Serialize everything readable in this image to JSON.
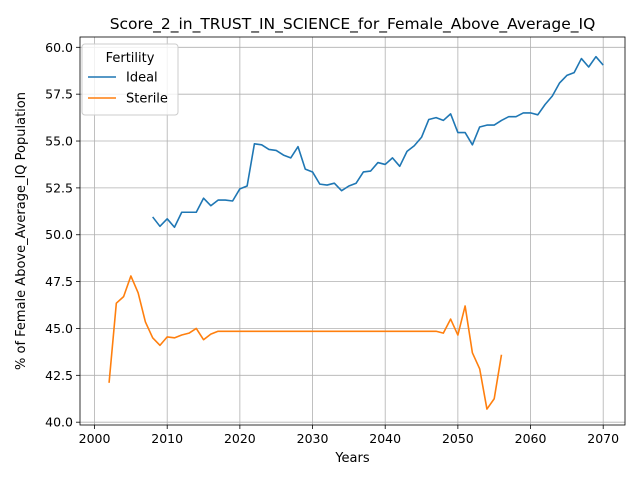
{
  "chart_data": {
    "type": "line",
    "title": "Score_2_in_TRUST_IN_SCIENCE_for_Female_Above_Average_IQ",
    "xlabel": "Years",
    "ylabel": "% of Female Above_Average_IQ Population",
    "xlim": [
      1998,
      2073
    ],
    "ylim": [
      39.85,
      60.55
    ],
    "xticks": [
      2000,
      2010,
      2020,
      2030,
      2040,
      2050,
      2060,
      2070
    ],
    "yticks": [
      40.0,
      42.5,
      45.0,
      47.5,
      50.0,
      52.5,
      55.0,
      57.5,
      60.0
    ],
    "grid": true,
    "legend": {
      "title": "Fertility",
      "placement": "top-left"
    },
    "series": [
      {
        "name": "Ideal",
        "color": "#1f77b4",
        "x": [
          2008,
          2009,
          2010,
          2011,
          2012,
          2013,
          2014,
          2015,
          2016,
          2017,
          2018,
          2019,
          2020,
          2021,
          2022,
          2023,
          2024,
          2025,
          2026,
          2027,
          2028,
          2029,
          2030,
          2031,
          2032,
          2033,
          2034,
          2035,
          2036,
          2037,
          2038,
          2039,
          2040,
          2041,
          2042,
          2043,
          2044,
          2045,
          2046,
          2047,
          2048,
          2049,
          2050,
          2051,
          2052,
          2053,
          2054,
          2055,
          2056,
          2057,
          2058,
          2059,
          2060,
          2061,
          2062,
          2063,
          2064,
          2065,
          2066,
          2067,
          2068,
          2069,
          2070
        ],
        "y": [
          50.95,
          50.45,
          50.85,
          50.4,
          51.2,
          51.2,
          51.2,
          51.95,
          51.55,
          51.85,
          51.85,
          51.8,
          52.45,
          52.6,
          54.85,
          54.8,
          54.55,
          54.5,
          54.25,
          54.1,
          54.7,
          53.5,
          53.35,
          52.7,
          52.65,
          52.75,
          52.35,
          52.6,
          52.75,
          53.35,
          53.4,
          53.85,
          53.75,
          54.1,
          53.65,
          54.45,
          54.75,
          55.2,
          56.15,
          56.25,
          56.1,
          56.45,
          55.45,
          55.45,
          54.8,
          55.75,
          55.85,
          55.85,
          56.1,
          56.3,
          56.3,
          56.5,
          56.5,
          56.4,
          56.95,
          57.4,
          58.1,
          58.5,
          58.65,
          59.4,
          58.95,
          59.5,
          59.05
        ]
      },
      {
        "name": "Sterile",
        "color": "#ff7f0e",
        "x": [
          2002,
          2003,
          2004,
          2005,
          2006,
          2007,
          2008,
          2009,
          2010,
          2011,
          2012,
          2013,
          2014,
          2015,
          2016,
          2017,
          2018,
          2019,
          2020,
          2021,
          2022,
          2023,
          2024,
          2025,
          2026,
          2027,
          2028,
          2029,
          2030,
          2031,
          2032,
          2033,
          2034,
          2035,
          2036,
          2037,
          2038,
          2039,
          2040,
          2041,
          2042,
          2043,
          2044,
          2045,
          2046,
          2047,
          2048,
          2049,
          2050,
          2051,
          2052,
          2053,
          2054,
          2055,
          2056
        ],
        "y": [
          42.1,
          46.35,
          46.7,
          47.8,
          46.9,
          45.35,
          44.5,
          44.1,
          44.55,
          44.5,
          44.65,
          44.75,
          45.0,
          44.4,
          44.7,
          44.85,
          44.85,
          44.85,
          44.85,
          44.85,
          44.85,
          44.85,
          44.85,
          44.85,
          44.85,
          44.85,
          44.85,
          44.85,
          44.85,
          44.85,
          44.85,
          44.85,
          44.85,
          44.85,
          44.85,
          44.85,
          44.85,
          44.85,
          44.85,
          44.85,
          44.85,
          44.85,
          44.85,
          44.85,
          44.85,
          44.85,
          44.75,
          45.5,
          44.65,
          46.2,
          43.7,
          42.85,
          40.7,
          41.25,
          43.6
        ]
      }
    ]
  }
}
